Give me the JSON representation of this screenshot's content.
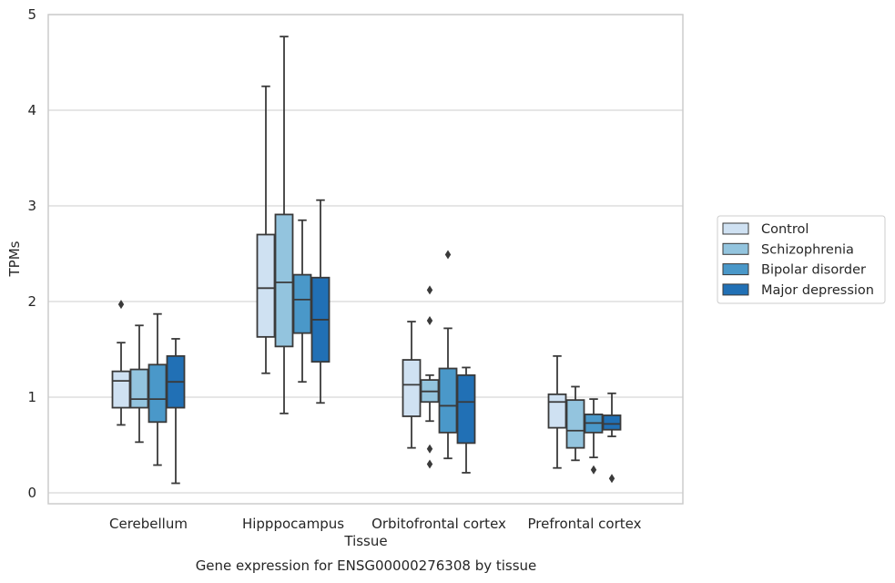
{
  "chart_data": {
    "type": "boxplot",
    "title": "",
    "caption": "Gene expression for ENSG00000276308 by tissue",
    "xlabel": "Tissue",
    "ylabel": "TPMs",
    "ylim": [
      -0.12,
      5.0
    ],
    "yticks": [
      "0",
      "1",
      "2",
      "3",
      "4",
      "5"
    ],
    "grid": true,
    "legend_position": "right",
    "categories": [
      "Cerebellum",
      "Hipppocampus",
      "Orbitofrontal cortex",
      "Prefrontal cortex"
    ],
    "series": [
      {
        "name": "Control",
        "color": "#cfe1f2",
        "boxes": [
          {
            "whislo": 0.71,
            "q1": 0.89,
            "med": 1.17,
            "q3": 1.27,
            "whishi": 1.57,
            "fliers": [
              1.97
            ]
          },
          {
            "whislo": 1.25,
            "q1": 1.63,
            "med": 2.14,
            "q3": 2.7,
            "whishi": 4.25,
            "fliers": []
          },
          {
            "whislo": 0.47,
            "q1": 0.8,
            "med": 1.13,
            "q3": 1.39,
            "whishi": 1.79,
            "fliers": []
          },
          {
            "whislo": 0.26,
            "q1": 0.68,
            "med": 0.95,
            "q3": 1.03,
            "whishi": 1.43,
            "fliers": []
          }
        ]
      },
      {
        "name": "Schizophrenia",
        "color": "#93c4de",
        "boxes": [
          {
            "whislo": 0.53,
            "q1": 0.89,
            "med": 0.98,
            "q3": 1.29,
            "whishi": 1.75,
            "fliers": []
          },
          {
            "whislo": 0.83,
            "q1": 1.53,
            "med": 2.2,
            "q3": 2.91,
            "whishi": 4.77,
            "fliers": []
          },
          {
            "whislo": 0.75,
            "q1": 0.95,
            "med": 1.06,
            "q3": 1.18,
            "whishi": 1.23,
            "fliers": [
              2.12,
              1.8,
              0.46,
              0.3
            ]
          },
          {
            "whislo": 0.34,
            "q1": 0.47,
            "med": 0.65,
            "q3": 0.97,
            "whishi": 1.11,
            "fliers": []
          }
        ]
      },
      {
        "name": "Bipolar disorder",
        "color": "#4a98c9",
        "boxes": [
          {
            "whislo": 0.29,
            "q1": 0.74,
            "med": 0.98,
            "q3": 1.34,
            "whishi": 1.87,
            "fliers": []
          },
          {
            "whislo": 1.16,
            "q1": 1.67,
            "med": 2.02,
            "q3": 2.28,
            "whishi": 2.85,
            "fliers": []
          },
          {
            "whislo": 0.36,
            "q1": 0.63,
            "med": 0.91,
            "q3": 1.3,
            "whishi": 1.72,
            "fliers": [
              2.49
            ]
          },
          {
            "whislo": 0.37,
            "q1": 0.63,
            "med": 0.73,
            "q3": 0.82,
            "whishi": 0.98,
            "fliers": [
              0.24
            ]
          }
        ]
      },
      {
        "name": "Major depression",
        "color": "#2170b5",
        "boxes": [
          {
            "whislo": 0.1,
            "q1": 0.89,
            "med": 1.16,
            "q3": 1.43,
            "whishi": 1.61,
            "fliers": []
          },
          {
            "whislo": 0.94,
            "q1": 1.37,
            "med": 1.81,
            "q3": 2.25,
            "whishi": 3.06,
            "fliers": []
          },
          {
            "whislo": 0.21,
            "q1": 0.52,
            "med": 0.95,
            "q3": 1.23,
            "whishi": 1.31,
            "fliers": []
          },
          {
            "whislo": 0.59,
            "q1": 0.66,
            "med": 0.72,
            "q3": 0.81,
            "whishi": 1.04,
            "fliers": [
              0.15
            ]
          }
        ]
      }
    ]
  }
}
